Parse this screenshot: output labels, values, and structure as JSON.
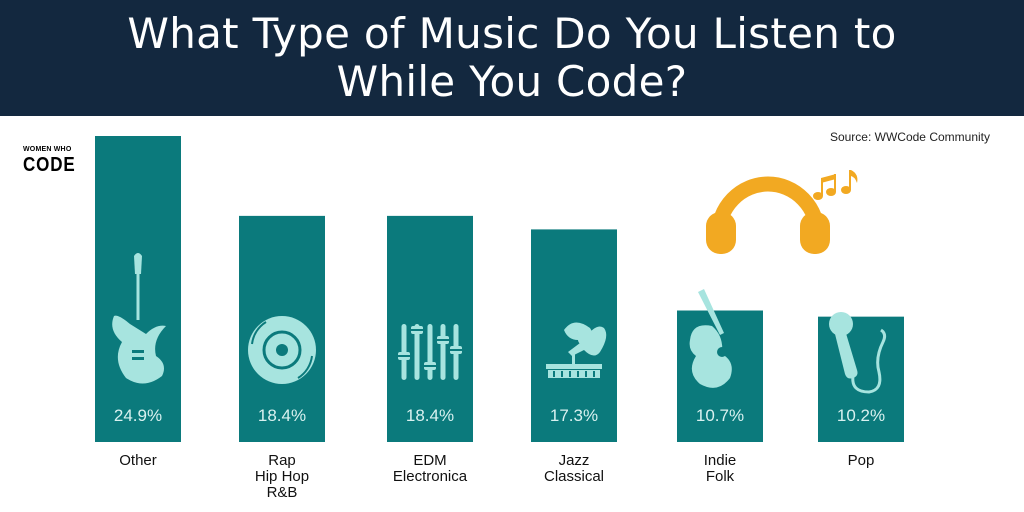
{
  "header": {
    "title": "What Type of Music Do You Listen to\nWhile You Code?"
  },
  "source": "Source: WWCode Community",
  "logo": {
    "top": "WOMEN WHO",
    "bottom": "CODE"
  },
  "colors": {
    "header_bg": "#13283f",
    "bar": "#0b7a7c",
    "icon": "#a7e4df",
    "accent": "#f2a922"
  },
  "chart_data": {
    "type": "bar",
    "categories": [
      [
        "Other"
      ],
      [
        "Rap",
        "Hip Hop",
        "R&B"
      ],
      [
        "EDM",
        "Electronica"
      ],
      [
        "Jazz",
        "Classical"
      ],
      [
        "Indie",
        "Folk"
      ],
      [
        "Pop"
      ]
    ],
    "values": [
      24.9,
      18.4,
      18.4,
      17.3,
      10.7,
      10.2
    ],
    "value_labels": [
      "24.9%",
      "18.4%",
      "18.4%",
      "17.3%",
      "10.7%",
      "10.2%"
    ],
    "icons": [
      "electric-guitar-icon",
      "vinyl-record-icon",
      "mixer-sliders-icon",
      "gramophone-icon",
      "acoustic-guitar-icon",
      "microphone-icon"
    ],
    "title": "What Type of Music Do You Listen to While You Code?",
    "ylim": [
      0,
      24.9
    ],
    "grid": false
  }
}
